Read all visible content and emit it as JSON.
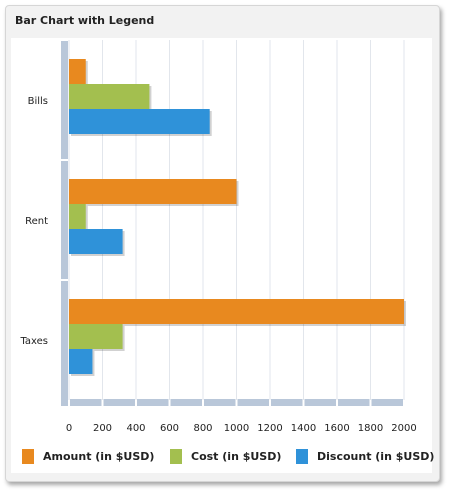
{
  "chart_data": {
    "type": "bar",
    "orientation": "horizontal",
    "title": "Bar Chart with Legend",
    "categories": [
      "Bills",
      "Rent",
      "Taxes"
    ],
    "series": [
      {
        "name": "Amount (in $USD)",
        "color": "#e8891f",
        "values": [
          100,
          1000,
          2000
        ]
      },
      {
        "name": "Cost (in $USD)",
        "color": "#a3bf4f",
        "values": [
          480,
          100,
          320
        ]
      },
      {
        "name": "Discount (in $USD)",
        "color": "#2f92d9",
        "values": [
          840,
          320,
          140
        ]
      }
    ],
    "x_ticks": [
      "0",
      "200",
      "400",
      "600",
      "800",
      "1000",
      "1200",
      "1400",
      "1600",
      "1800",
      "2000"
    ],
    "xlim": [
      0,
      2000
    ],
    "grid": true,
    "legend_position": "bottom"
  }
}
